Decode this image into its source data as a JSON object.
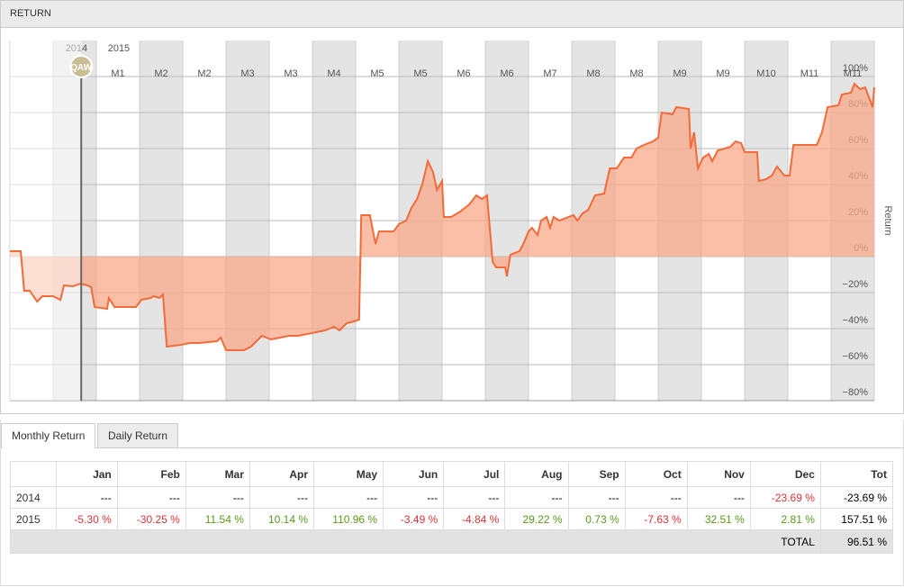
{
  "panel_title": "RETURN",
  "chart_data": {
    "type": "area-line",
    "y_label": "Return",
    "color": "#f26b38",
    "fill": "#f9a88a",
    "cursor": {
      "x": 1.65,
      "label": "QAW"
    },
    "xlim": [
      0,
      20
    ],
    "year_ticks": [
      {
        "value": 1.54,
        "label": "2014"
      },
      {
        "value": 2.52,
        "label": "2015"
      }
    ],
    "xticks": [
      {
        "value": 2.5,
        "label": "M1"
      },
      {
        "value": 3.5,
        "label": "M2"
      },
      {
        "value": 4.5,
        "label": "M2"
      },
      {
        "value": 5.5,
        "label": "M3"
      },
      {
        "value": 6.5,
        "label": "M3"
      },
      {
        "value": 7.5,
        "label": "M4"
      },
      {
        "value": 8.5,
        "label": "M5"
      },
      {
        "value": 9.5,
        "label": "M5"
      },
      {
        "value": 10.5,
        "label": "M6"
      },
      {
        "value": 11.5,
        "label": "M6"
      },
      {
        "value": 12.5,
        "label": "M7"
      },
      {
        "value": 13.5,
        "label": "M8"
      },
      {
        "value": 14.5,
        "label": "M8"
      },
      {
        "value": 15.5,
        "label": "M9"
      },
      {
        "value": 16.5,
        "label": "M9"
      },
      {
        "value": 17.5,
        "label": "M10"
      },
      {
        "value": 18.5,
        "label": "M11"
      },
      {
        "value": 19.5,
        "label": "M11"
      }
    ],
    "ylim": [
      -80,
      120
    ],
    "yticks": [
      {
        "value": -80,
        "label": "−80%"
      },
      {
        "value": -60,
        "label": "−60%"
      },
      {
        "value": -40,
        "label": "−40%"
      },
      {
        "value": -20,
        "label": "−20%"
      },
      {
        "value": 0,
        "label": "0%"
      },
      {
        "value": 20,
        "label": "20%"
      },
      {
        "value": 40,
        "label": "40%"
      },
      {
        "value": 60,
        "label": "60%"
      },
      {
        "value": 80,
        "label": "80%"
      },
      {
        "value": 100,
        "label": "100%"
      }
    ],
    "x": [
      0,
      0.25,
      0.33,
      0.46,
      0.63,
      0.75,
      1,
      1.17,
      1.25,
      1.46,
      1.63,
      1.79,
      1.88,
      1.96,
      2.25,
      2.29,
      2.42,
      2.92,
      3.04,
      3.25,
      3.33,
      3.46,
      3.54,
      3.63,
      3.96,
      4.17,
      4.38,
      4.79,
      4.88,
      5,
      5.42,
      5.58,
      5.83,
      6.04,
      6.25,
      6.46,
      6.67,
      6.88,
      7.08,
      7.29,
      7.5,
      7.63,
      7.79,
      7.96,
      8.08,
      8.13,
      8.33,
      8.46,
      8.54,
      8.88,
      9,
      9.17,
      9.29,
      9.42,
      9.54,
      9.67,
      9.79,
      9.88,
      10,
      10.04,
      10.21,
      10.42,
      10.63,
      10.79,
      10.92,
      11.04,
      11.17,
      11.25,
      11.46,
      11.5,
      11.58,
      11.79,
      11.88,
      12,
      12.08,
      12.21,
      12.29,
      12.42,
      12.5,
      12.58,
      12.71,
      13.04,
      13.13,
      13.25,
      13.38,
      13.54,
      13.75,
      13.88,
      14.04,
      14.21,
      14.38,
      14.5,
      14.67,
      14.88,
      15,
      15.08,
      15.33,
      15.42,
      15.71,
      15.75,
      15.83,
      15.92,
      16.04,
      16.17,
      16.25,
      16.38,
      16.54,
      16.67,
      16.79,
      16.92,
      17,
      17.29,
      17.33,
      17.5,
      17.63,
      17.75,
      17.92,
      18.04,
      18.13,
      18.67,
      18.79,
      18.92,
      19.17,
      19.25,
      19.46,
      19.54,
      19.67,
      19.79,
      19.96,
      20
    ],
    "values": [
      3,
      3,
      -19,
      -19,
      -25,
      -22,
      -22,
      -24,
      -16,
      -16.5,
      -15,
      -16,
      -17,
      -28,
      -29,
      -23,
      -28,
      -28,
      -24,
      -23,
      -22,
      -23,
      -21,
      -50,
      -49,
      -48,
      -48,
      -47,
      -45,
      -52,
      -52,
      -50,
      -44,
      -46,
      -45,
      -44,
      -44,
      -43,
      -42,
      -41,
      -39,
      -41,
      -37,
      -36,
      -35,
      23,
      23,
      7,
      14,
      14,
      18,
      20,
      27,
      32,
      40,
      53,
      47,
      37,
      42,
      22,
      22,
      25,
      29,
      34,
      32,
      34,
      -3,
      -6,
      -6,
      -11,
      1,
      3,
      7,
      14,
      16,
      12,
      20,
      22,
      16,
      22,
      20,
      23,
      20,
      24,
      26,
      34,
      35,
      49,
      49,
      55,
      55,
      60,
      62,
      64,
      66,
      80,
      79,
      83,
      82,
      60,
      69,
      49,
      55,
      57,
      53,
      59,
      60,
      61,
      64,
      63,
      58,
      58,
      42,
      43,
      45,
      50,
      45,
      45,
      62,
      62,
      69,
      83,
      84,
      90,
      91,
      96,
      93,
      94,
      83,
      94
    ]
  },
  "tabs": [
    "Monthly Return",
    "Daily Return"
  ],
  "table": {
    "header": [
      "",
      "Jan",
      "Feb",
      "Mar",
      "Apr",
      "May",
      "Jun",
      "Jul",
      "Aug",
      "Sep",
      "Oct",
      "Nov",
      "Dec",
      "Tot"
    ],
    "rows": [
      [
        "2014",
        "---",
        "---",
        "---",
        "---",
        "---",
        "---",
        "---",
        "---",
        "---",
        "---",
        "---",
        "-23.69 %",
        "-23.69 %"
      ],
      [
        "2015",
        "-5.30 %",
        "-30.25 %",
        "11.54 %",
        "10.14 %",
        "110.96 %",
        "-3.49 %",
        "-4.84 %",
        "29.22 %",
        "0.73 %",
        "-7.63 %",
        "32.51 %",
        "2.81 %",
        "157.51 %"
      ]
    ],
    "total": {
      "label": "TOTAL",
      "value": "96.51 %"
    }
  }
}
